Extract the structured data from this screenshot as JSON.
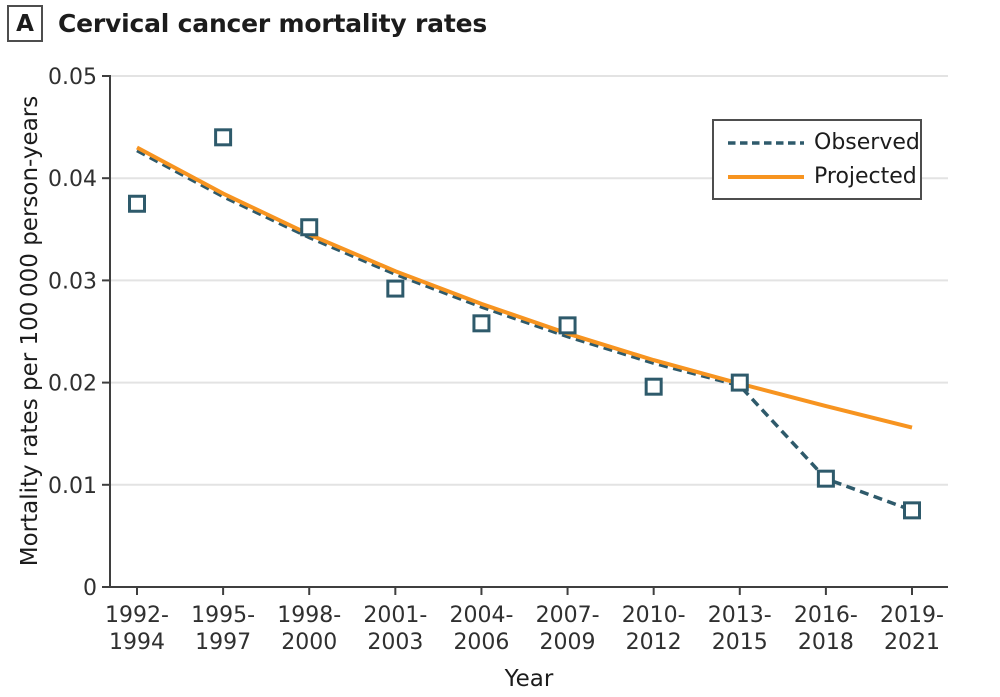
{
  "panel": {
    "letter": "A",
    "title": "Cervical cancer mortality rates"
  },
  "colors": {
    "observed": "#2E5A6B",
    "projected": "#F79420",
    "grid": "#E3E3E3",
    "axis": "#3F3F3F",
    "text": "#303030",
    "title_text": "#1C1C1C",
    "legend_border": "#4E4E4E",
    "background": "#FFFFFF"
  },
  "legend": {
    "position": "upper-right",
    "items": [
      {
        "label": "Observed",
        "style": "dashed",
        "color": "#2E5A6B"
      },
      {
        "label": "Projected",
        "style": "solid",
        "color": "#F79420"
      }
    ]
  },
  "chart_data": {
    "type": "line",
    "title": "Cervical cancer mortality rates",
    "xlabel": "Year",
    "ylabel": "Mortality rates per 100 000 person-years",
    "categories": [
      "1992-1994",
      "1995-1997",
      "1998-2000",
      "2001-2003",
      "2004-2006",
      "2007-2009",
      "2010-2012",
      "2013-2015",
      "2016-2018",
      "2019-2021"
    ],
    "y_ticks": [
      0,
      0.01,
      0.02,
      0.03,
      0.04,
      0.05
    ],
    "y_tick_labels": [
      "0",
      "0.01",
      "0.02",
      "0.03",
      "0.04",
      "0.05"
    ],
    "ylim": [
      0,
      0.05
    ],
    "grid": "horizontal",
    "legend_position": "upper right",
    "series": [
      {
        "name": "Observed data points",
        "role": "markers",
        "marker": "open-square",
        "values": [
          0.0375,
          0.044,
          0.0352,
          0.0292,
          0.0258,
          0.0256,
          0.0196,
          0.02,
          0.0106,
          0.0075
        ]
      },
      {
        "name": "Observed",
        "role": "line",
        "style": "dashed",
        "values": [
          0.0427,
          0.0382,
          0.0342,
          0.0306,
          0.0274,
          0.0245,
          0.0219,
          0.0197,
          0.0106,
          0.0075
        ]
      },
      {
        "name": "Projected",
        "role": "line",
        "style": "solid",
        "values": [
          0.043,
          0.0385,
          0.0345,
          0.0309,
          0.0277,
          0.0248,
          0.0222,
          0.0199,
          0.0177,
          0.0156
        ]
      }
    ]
  }
}
